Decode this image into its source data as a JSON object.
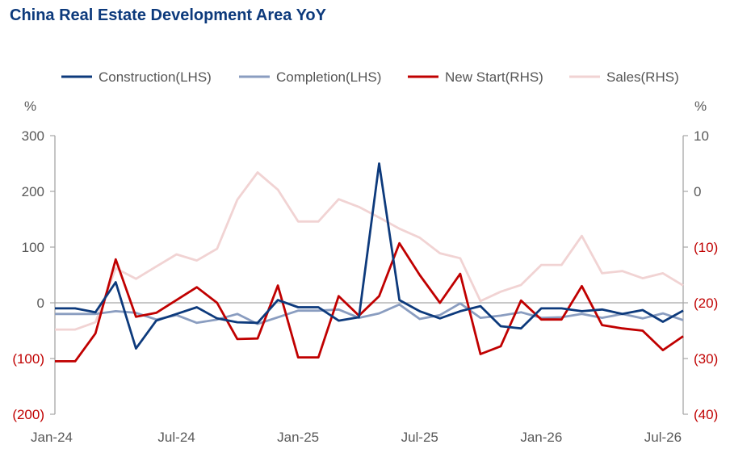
{
  "chart_data": {
    "type": "line",
    "title": "China Real Estate Development Area YoY",
    "y_left_unit": "%",
    "y_right_unit": "%",
    "ylim_left": [
      -200,
      300
    ],
    "ylim_right": [
      -40,
      10
    ],
    "x_ticks": [
      "Jan-24",
      "Jul-24",
      "Jan-25",
      "Jul-25",
      "Jan-26",
      "Jul-26"
    ],
    "x": [
      "Jan-24",
      "Feb-24",
      "Mar-24",
      "Apr-24",
      "May-24",
      "Jun-24",
      "Jul-24",
      "Aug-24",
      "Sep-24",
      "Oct-24",
      "Nov-24",
      "Dec-24",
      "Jan-25",
      "Feb-25",
      "Mar-25",
      "Apr-25",
      "May-25",
      "Jun-25",
      "Jul-25",
      "Aug-25",
      "Sep-25",
      "Oct-25",
      "Nov-25",
      "Dec-25",
      "Jan-26",
      "Feb-26",
      "Mar-26",
      "Apr-26",
      "May-26",
      "Jun-26",
      "Jul-26",
      "Aug-26"
    ],
    "left_ticks": [
      "300",
      "200",
      "100",
      "0",
      "(100)",
      "(200)"
    ],
    "right_ticks": [
      "10",
      "0",
      "(10)",
      "(20)",
      "(30)",
      "(40)"
    ],
    "series": [
      {
        "name": "Construction(LHS)",
        "axis": "left",
        "color": "#0d3a7c",
        "values": [
          -10,
          -10,
          -17,
          37,
          -82,
          -32,
          -20,
          -8,
          -28,
          -35,
          -36,
          5,
          -8,
          -8,
          -32,
          -26,
          250,
          5,
          -15,
          -28,
          -15,
          -6,
          -42,
          -46,
          -10,
          -10,
          -15,
          -12,
          -20,
          -13,
          -34,
          -14
        ]
      },
      {
        "name": "Completion(LHS)",
        "axis": "left",
        "color": "#8a9dc0",
        "values": [
          -20,
          -20,
          -20,
          -15,
          -18,
          -30,
          -22,
          -36,
          -30,
          -20,
          -38,
          -26,
          -14,
          -14,
          -12,
          -27,
          -19,
          -3,
          -29,
          -22,
          -1,
          -27,
          -23,
          -17,
          -27,
          -26,
          -20,
          -27,
          -20,
          -28,
          -19,
          -31
        ]
      },
      {
        "name": "New Start(RHS)",
        "axis": "right",
        "color": "#c00000",
        "values": [
          -30.5,
          -30.5,
          -25.5,
          -12.2,
          -22.5,
          -21.8,
          -19.5,
          -17.2,
          -20.0,
          -26.5,
          -26.4,
          -16.9,
          -29.8,
          -29.8,
          -18.8,
          -22.3,
          -18.8,
          -9.3,
          -15.0,
          -20.0,
          -14.8,
          -29.2,
          -27.8,
          -19.6,
          -23.0,
          -23.0,
          -17.0,
          -24.0,
          -24.6,
          -25.0,
          -28.5,
          -26.0
        ]
      },
      {
        "name": "Sales(RHS)",
        "axis": "right",
        "color": "#f1d3d3",
        "values": [
          -24.8,
          -24.8,
          -23.5,
          -13.8,
          -15.7,
          -13.5,
          -11.3,
          -12.4,
          -10.3,
          -1.5,
          3.4,
          0.3,
          -5.4,
          -5.4,
          -1.4,
          -2.8,
          -4.7,
          -6.7,
          -8.3,
          -11.1,
          -12.0,
          -19.7,
          -18.0,
          -16.8,
          -13.2,
          -13.2,
          -8.0,
          -14.7,
          -14.3,
          -15.6,
          -14.7,
          -16.9
        ]
      }
    ]
  }
}
